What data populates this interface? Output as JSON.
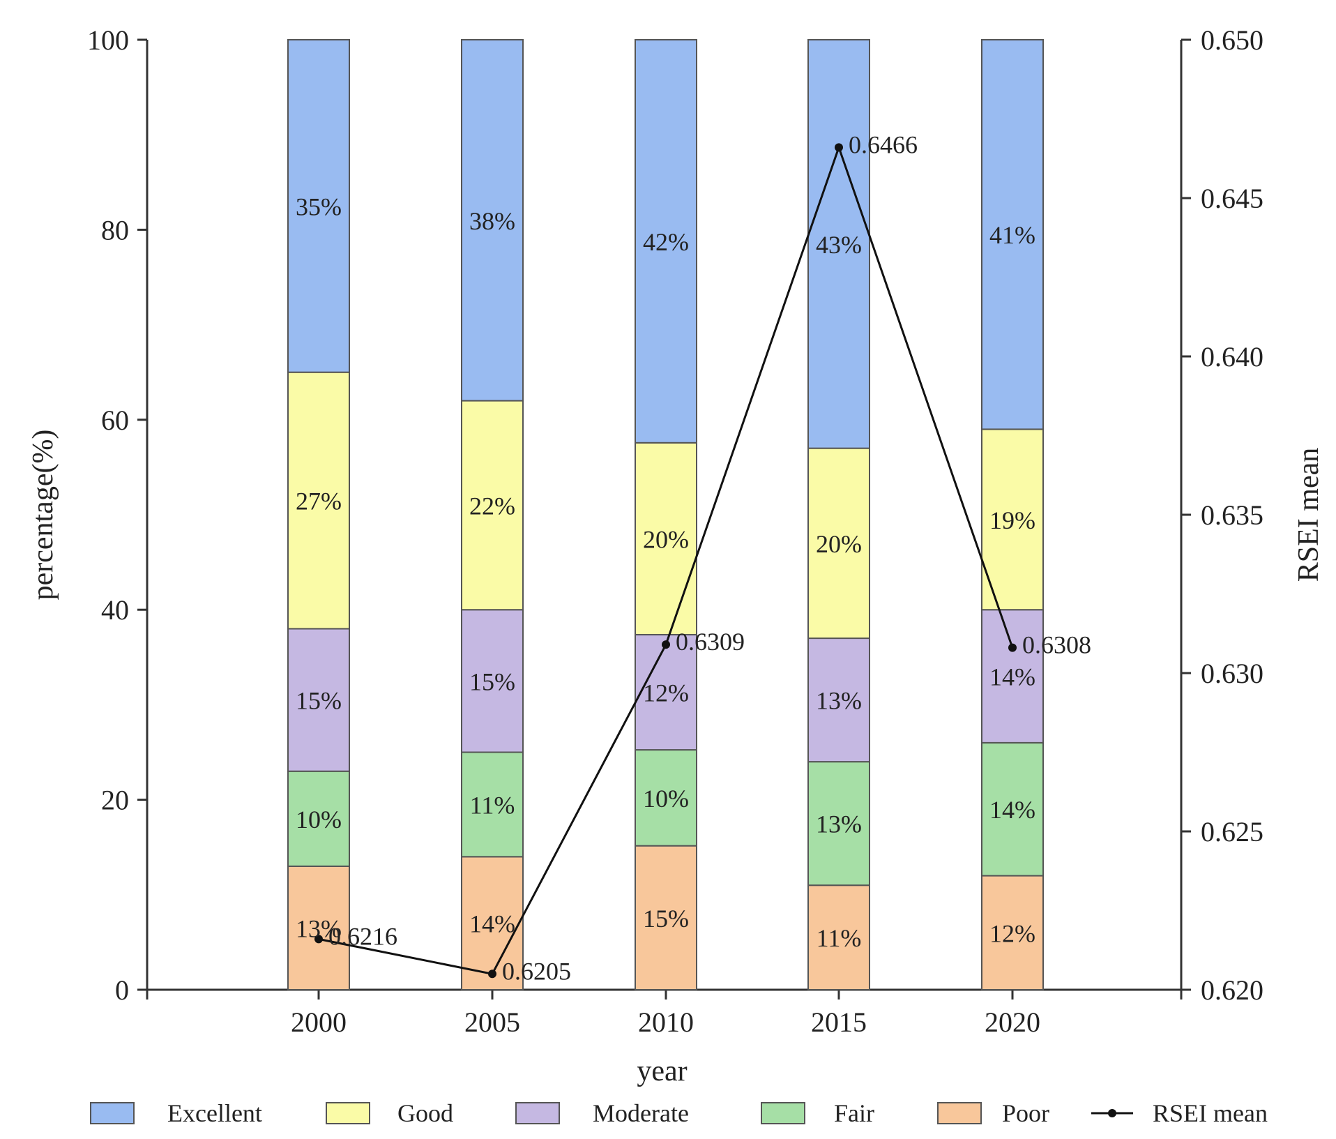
{
  "chart_data": {
    "type": "bar",
    "stacked": true,
    "categories": [
      "2000",
      "2005",
      "2010",
      "2015",
      "2020"
    ],
    "series": [
      {
        "name": "Poor",
        "color": "#f8c79b",
        "values": [
          13,
          14,
          15,
          11,
          12
        ],
        "labels": [
          "13%",
          "14%",
          "15%",
          "11%",
          "12%"
        ]
      },
      {
        "name": "Fair",
        "color": "#a6dfa6",
        "values": [
          10,
          11,
          10,
          13,
          14
        ],
        "labels": [
          "10%",
          "11%",
          "10%",
          "13%",
          "14%"
        ]
      },
      {
        "name": "Moderate",
        "color": "#c5b8e2",
        "values": [
          15,
          15,
          12,
          13,
          14
        ],
        "labels": [
          "15%",
          "15%",
          "12%",
          "13%",
          "14%"
        ]
      },
      {
        "name": "Good",
        "color": "#fafba7",
        "values": [
          27,
          22,
          20,
          20,
          19
        ],
        "labels": [
          "27%",
          "22%",
          "20%",
          "20%",
          "19%"
        ]
      },
      {
        "name": "Excellent",
        "color": "#99bbf1",
        "values": [
          35,
          38,
          42,
          43,
          41
        ],
        "labels": [
          "35%",
          "38%",
          "42%",
          "43%",
          "41%"
        ]
      }
    ],
    "line": {
      "name": "RSEI mean",
      "values": [
        0.6216,
        0.6205,
        0.6309,
        0.6466,
        0.6308
      ],
      "labels": [
        "0.6216",
        "0.6205",
        "0.6309",
        "0.6466",
        "0.6308"
      ]
    },
    "xlabel": "year",
    "ylabel": "percentage(%)",
    "y2label": "RSEI mean",
    "ylim": [
      0,
      100
    ],
    "yticks": [
      "0",
      "20",
      "40",
      "60",
      "80",
      "100"
    ],
    "y2lim": [
      0.62,
      0.65
    ],
    "y2ticks": [
      "0.620",
      "0.625",
      "0.630",
      "0.635",
      "0.640",
      "0.645",
      "0.650"
    ],
    "legend": {
      "placement": "bottom",
      "order": [
        "Excellent",
        "Good",
        "Moderate",
        "Fair",
        "Poor",
        "RSEI mean"
      ]
    }
  }
}
